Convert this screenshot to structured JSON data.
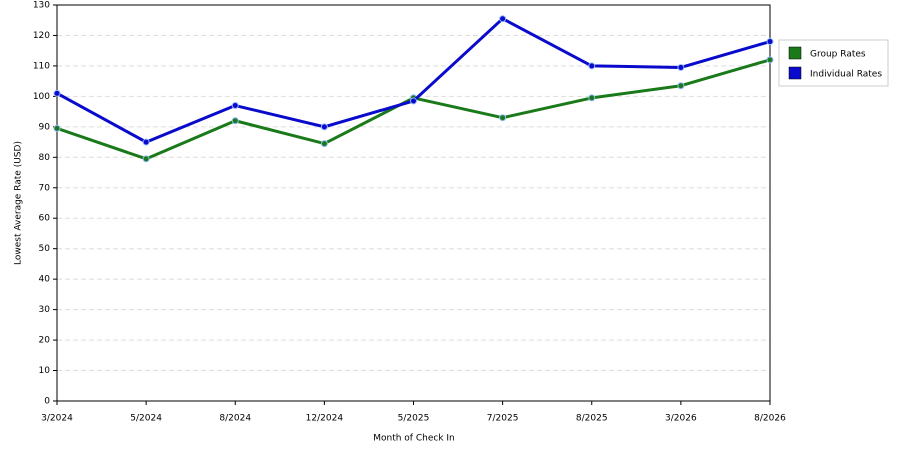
{
  "chart_data": {
    "type": "line",
    "x_label": "Month of Check In",
    "y_label": "Lowest Average Rate (USD)",
    "categories": [
      "3/2024",
      "5/2024",
      "8/2024",
      "12/2024",
      "5/2025",
      "7/2025",
      "8/2025",
      "3/2026",
      "8/2026"
    ],
    "series": [
      {
        "name": "Group Rates",
        "color": "#1a7a1a",
        "values": [
          89.5,
          79.5,
          92,
          84.5,
          99.5,
          93,
          99.5,
          103.5,
          112
        ]
      },
      {
        "name": "Individual Rates",
        "color": "#0a0acc",
        "values": [
          101,
          85,
          97,
          90,
          98.5,
          125.5,
          110,
          109.5,
          118
        ]
      }
    ],
    "ylim": [
      0,
      130
    ],
    "yticks": [
      0,
      10,
      20,
      30,
      40,
      50,
      60,
      70,
      80,
      90,
      100,
      110,
      120,
      130
    ],
    "grid": true,
    "legend": "right"
  }
}
